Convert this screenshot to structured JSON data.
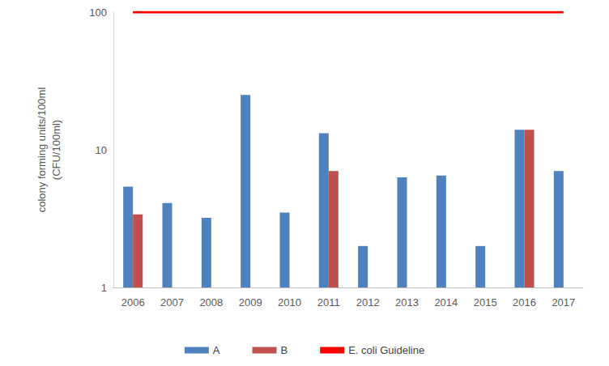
{
  "chart_data": {
    "type": "bar",
    "y_label": "colony forming units/100ml\n(CFU/100ml)",
    "categories": [
      "2006",
      "2007",
      "2008",
      "2009",
      "2010",
      "2011",
      "2012",
      "2013",
      "2014",
      "2015",
      "2016",
      "2017"
    ],
    "series": [
      {
        "name": "A",
        "type": "bar",
        "color": "#4f81bd",
        "values": [
          5.4,
          4.1,
          3.2,
          25,
          3.5,
          13.2,
          2.0,
          6.3,
          6.5,
          2.0,
          14,
          7.0
        ]
      },
      {
        "name": "B",
        "type": "bar",
        "color": "#c0504d",
        "values": [
          3.4,
          null,
          null,
          null,
          null,
          7.0,
          null,
          null,
          null,
          null,
          14,
          null
        ]
      },
      {
        "name": "E. coli Guideline",
        "type": "line",
        "color": "#ff0000",
        "values": [
          100,
          100,
          100,
          100,
          100,
          100,
          100,
          100,
          100,
          100,
          100,
          100
        ]
      }
    ],
    "log": "y",
    "ylim": [
      1,
      100
    ],
    "yticks": [
      1,
      10,
      100
    ],
    "grid": false,
    "legend": "bottom"
  }
}
